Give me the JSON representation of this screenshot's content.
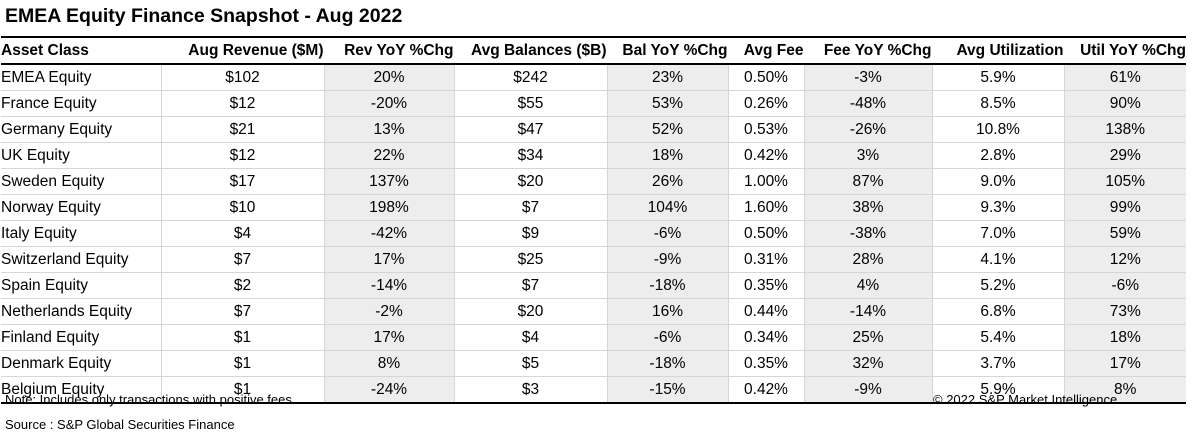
{
  "title": "EMEA Equity Finance Snapshot - Aug 2022",
  "table": {
    "headers": [
      "Asset Class",
      "Aug Revenue ($M)",
      "Rev YoY %Chg",
      "Avg Balances ($B)",
      "Bal YoY %Chg",
      "Avg Fee",
      "Fee YoY %Chg",
      "Avg Utilization",
      "Util YoY %Chg"
    ],
    "rows": [
      [
        "EMEA Equity",
        "$102",
        "20%",
        "$242",
        "23%",
        "0.50%",
        "-3%",
        "5.9%",
        "61%"
      ],
      [
        "France Equity",
        "$12",
        "-20%",
        "$55",
        "53%",
        "0.26%",
        "-48%",
        "8.5%",
        "90%"
      ],
      [
        "Germany Equity",
        "$21",
        "13%",
        "$47",
        "52%",
        "0.53%",
        "-26%",
        "10.8%",
        "138%"
      ],
      [
        "UK Equity",
        "$12",
        "22%",
        "$34",
        "18%",
        "0.42%",
        "3%",
        "2.8%",
        "29%"
      ],
      [
        "Sweden Equity",
        "$17",
        "137%",
        "$20",
        "26%",
        "1.00%",
        "87%",
        "9.0%",
        "105%"
      ],
      [
        "Norway Equity",
        "$10",
        "198%",
        "$7",
        "104%",
        "1.60%",
        "38%",
        "9.3%",
        "99%"
      ],
      [
        "Italy Equity",
        "$4",
        "-42%",
        "$9",
        "-6%",
        "0.50%",
        "-38%",
        "7.0%",
        "59%"
      ],
      [
        "Switzerland Equity",
        "$7",
        "17%",
        "$25",
        "-9%",
        "0.31%",
        "28%",
        "4.1%",
        "12%"
      ],
      [
        "Spain Equity",
        "$2",
        "-14%",
        "$7",
        "-18%",
        "0.35%",
        "4%",
        "5.2%",
        "-6%"
      ],
      [
        "Netherlands Equity",
        "$7",
        "-2%",
        "$20",
        "16%",
        "0.44%",
        "-14%",
        "6.8%",
        "73%"
      ],
      [
        "Finland Equity",
        "$1",
        "17%",
        "$4",
        "-6%",
        "0.34%",
        "25%",
        "5.4%",
        "18%"
      ],
      [
        "Denmark Equity",
        "$1",
        "8%",
        "$5",
        "-18%",
        "0.35%",
        "32%",
        "3.7%",
        "17%"
      ],
      [
        "Belgium Equity",
        "$1",
        "-24%",
        "$3",
        "-15%",
        "0.42%",
        "-9%",
        "5.9%",
        "8%"
      ]
    ]
  },
  "footer": {
    "note": "Note: Includes only transactions with positive fees",
    "source": "Source : S&P Global Securities Finance",
    "copyright": "© 2022 S&P Market Intelligence"
  },
  "colors": {
    "shaded_column": "#ededed",
    "rule": "#000000",
    "gridline": "#d6d6d6"
  }
}
